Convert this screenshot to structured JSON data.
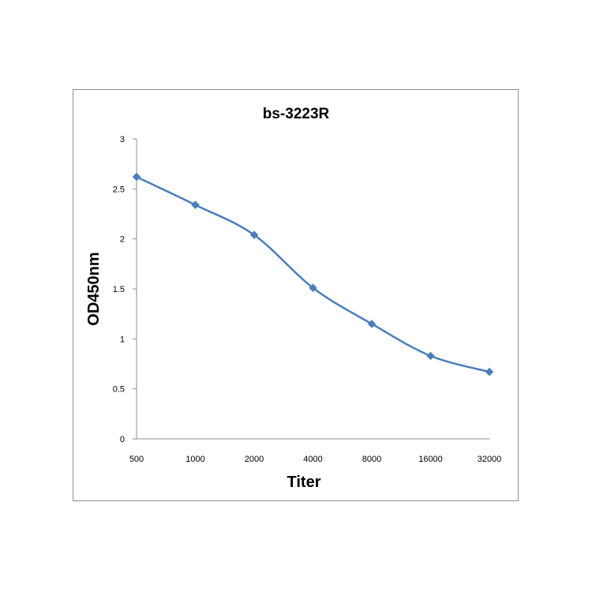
{
  "chart_data": {
    "type": "line",
    "title": "bs-3223R",
    "xlabel": "Titer",
    "ylabel": "OD450nm",
    "categories": [
      "500",
      "1000",
      "2000",
      "4000",
      "8000",
      "16000",
      "32000"
    ],
    "series": [
      {
        "values": [
          2.62,
          2.34,
          2.04,
          1.51,
          1.15,
          0.83,
          0.67
        ]
      }
    ],
    "ylim": [
      0,
      3
    ],
    "yticks": [
      "0",
      "0.5",
      "1",
      "1.5",
      "2",
      "2.5",
      "3"
    ],
    "grid": false,
    "legend": "none",
    "line_color": "#4a7ebb",
    "marker": "diamond"
  }
}
